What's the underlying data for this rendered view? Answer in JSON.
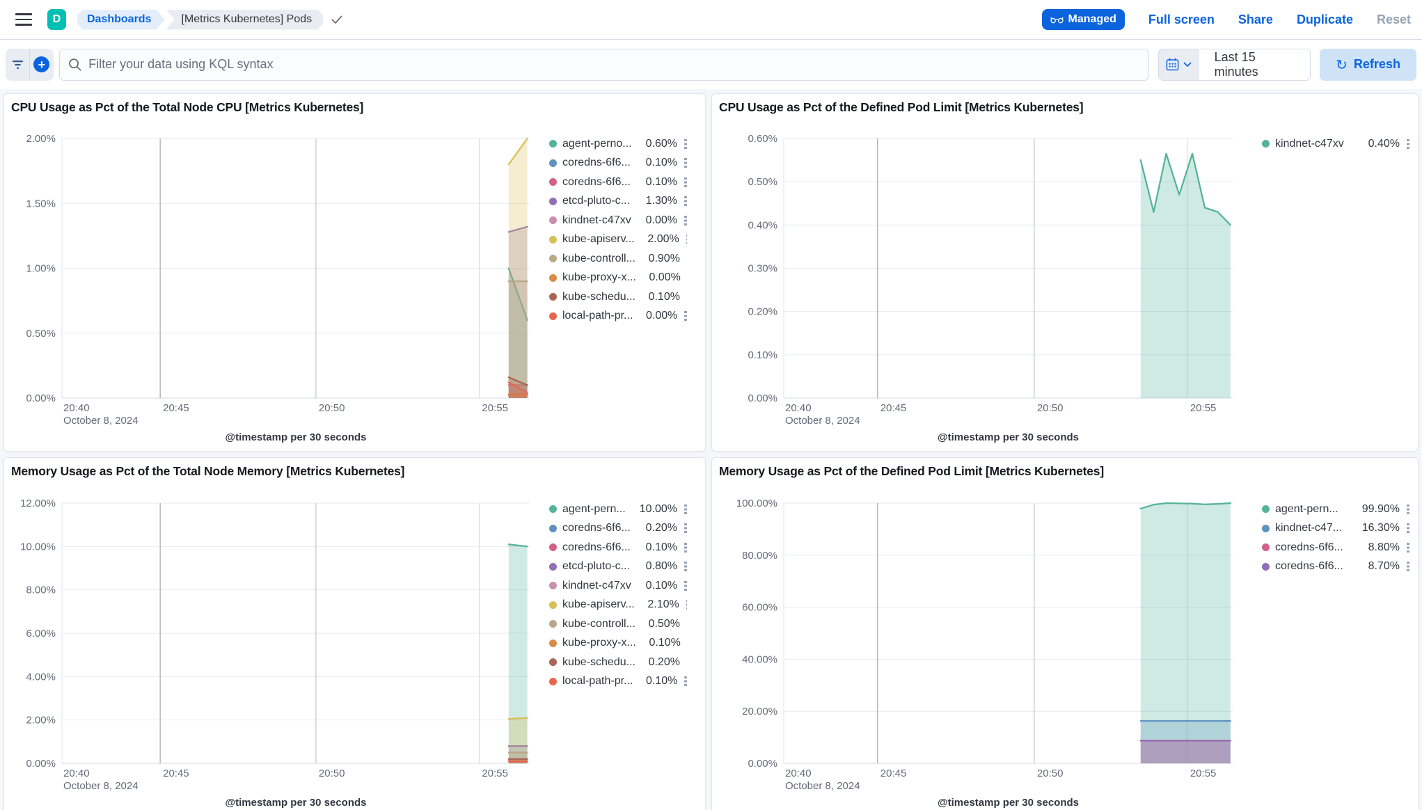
{
  "header": {
    "logo_letter": "D",
    "breadcrumbs": [
      {
        "label": "Dashboards"
      },
      {
        "label": "[Metrics Kubernetes] Pods"
      }
    ],
    "managed_badge_label": "Managed",
    "actions": {
      "full_screen": "Full screen",
      "share": "Share",
      "duplicate": "Duplicate",
      "reset": "Reset"
    }
  },
  "toolbar": {
    "search_placeholder": "Filter your data using KQL syntax",
    "time_range_label": "Last 15 minutes",
    "refresh_label": "Refresh"
  },
  "colors": {
    "accent_blue": "#0b64dd",
    "logo_teal": "#00bfb3",
    "palette": [
      "#54B399",
      "#6092C0",
      "#D36086",
      "#9170B8",
      "#CA8EAE",
      "#D6BF57",
      "#B9A888",
      "#DA8B45",
      "#AA6556",
      "#E7664C"
    ],
    "grid_dark": "#95969e",
    "grid_med": "#b9bcc4",
    "grid_light": "#d3d6dc",
    "axis_text": "#646a77",
    "legend_text": "#343741"
  },
  "chart_data": [
    {
      "type": "area",
      "title": "CPU Usage as Pct of the Total Node CPU [Metrics Kubernetes]",
      "x_axis_title": "@timestamp per 30 seconds",
      "ylim": [
        0,
        2
      ],
      "grid": true,
      "legend_position": "right",
      "y_ticks": [
        {
          "v": 2,
          "label": "2.00%"
        },
        {
          "v": 1.5,
          "label": "1.50%"
        },
        {
          "v": 1,
          "label": "1.00%"
        },
        {
          "v": 0.5,
          "label": "0.50%"
        },
        {
          "v": 0,
          "label": "0.00%"
        }
      ],
      "x_ticks": [
        {
          "f": 0,
          "label": "20:40",
          "sub": "October 8, 2024"
        },
        {
          "f": 0.21,
          "label": "20:45",
          "grid": "dark"
        },
        {
          "f": 0.543,
          "label": "20:50",
          "grid": "med"
        },
        {
          "f": 0.892,
          "label": "20:55",
          "grid": "light"
        }
      ],
      "series": [
        {
          "name": "agent-perno...",
          "value": "0.60%",
          "color": "#54B399",
          "x": [
            0.955,
            0.995
          ],
          "y": [
            1.0,
            0.6
          ]
        },
        {
          "name": "coredns-6f6...",
          "value": "0.10%",
          "color": "#6092C0",
          "x": [
            0.955,
            0.995
          ],
          "y": [
            0.1,
            0.1
          ]
        },
        {
          "name": "coredns-6f6...",
          "value": "0.10%",
          "color": "#D36086",
          "x": [
            0.955,
            0.995
          ],
          "y": [
            0.1,
            0.1
          ]
        },
        {
          "name": "etcd-pluto-c...",
          "value": "1.30%",
          "color": "#9170B8",
          "x": [
            0.955,
            0.995
          ],
          "y": [
            1.28,
            1.32
          ]
        },
        {
          "name": "kindnet-c47xv",
          "value": "0.00%",
          "color": "#CA8EAE",
          "x": [
            0.955,
            0.995
          ],
          "y": [
            0.02,
            0.02
          ]
        },
        {
          "name": "kube-apiserv...",
          "value": "2.00%",
          "color": "#D6BF57",
          "x": [
            0.955,
            0.995
          ],
          "y": [
            1.8,
            2.0
          ]
        },
        {
          "name": "kube-controll...",
          "value": "0.90%",
          "color": "#B9A888",
          "x": [
            0.955,
            0.995
          ],
          "y": [
            0.9,
            0.9
          ]
        },
        {
          "name": "kube-proxy-x...",
          "value": "0.00%",
          "color": "#DA8B45",
          "x": [
            0.955,
            0.995
          ],
          "y": [
            0.03,
            0.03
          ]
        },
        {
          "name": "kube-schedu...",
          "value": "0.10%",
          "color": "#AA6556",
          "x": [
            0.955,
            0.995
          ],
          "y": [
            0.16,
            0.1
          ]
        },
        {
          "name": "local-path-pr...",
          "value": "0.00%",
          "color": "#E7664C",
          "x": [
            0.955,
            0.995
          ],
          "y": [
            0.12,
            0.04
          ]
        }
      ]
    },
    {
      "type": "area",
      "title": "CPU Usage as Pct of the Defined Pod Limit [Metrics Kubernetes]",
      "x_axis_title": "@timestamp per 30 seconds",
      "ylim": [
        0,
        0.6
      ],
      "grid": true,
      "legend_position": "right",
      "y_ticks": [
        {
          "v": 0.6,
          "label": "0.60%"
        },
        {
          "v": 0.5,
          "label": "0.50%"
        },
        {
          "v": 0.4,
          "label": "0.40%"
        },
        {
          "v": 0.3,
          "label": "0.30%"
        },
        {
          "v": 0.2,
          "label": "0.20%"
        },
        {
          "v": 0.1,
          "label": "0.10%"
        },
        {
          "v": 0,
          "label": "0.00%"
        }
      ],
      "x_ticks": [
        {
          "f": 0,
          "label": "20:40",
          "sub": "October 8, 2024"
        },
        {
          "f": 0.209,
          "label": "20:45",
          "grid": "dark"
        },
        {
          "f": 0.558,
          "label": "20:50",
          "grid": "med"
        },
        {
          "f": 0.899,
          "label": "20:55",
          "grid": "light"
        }
      ],
      "series": [
        {
          "name": "kindnet-c47xv",
          "value": "0.40%",
          "color": "#54B399",
          "x": [
            0.795,
            0.824,
            0.852,
            0.881,
            0.91,
            0.938,
            0.967,
            0.995
          ],
          "y": [
            0.55,
            0.43,
            0.565,
            0.47,
            0.565,
            0.44,
            0.43,
            0.4
          ]
        }
      ]
    },
    {
      "type": "area",
      "title": "Memory Usage as Pct of the Total Node Memory [Metrics Kubernetes]",
      "x_axis_title": "@timestamp per 30 seconds",
      "ylim": [
        0,
        12
      ],
      "grid": true,
      "legend_position": "right",
      "y_ticks": [
        {
          "v": 12,
          "label": "12.00%"
        },
        {
          "v": 10,
          "label": "10.00%"
        },
        {
          "v": 8,
          "label": "8.00%"
        },
        {
          "v": 6,
          "label": "6.00%"
        },
        {
          "v": 4,
          "label": "4.00%"
        },
        {
          "v": 2,
          "label": "2.00%"
        },
        {
          "v": 0,
          "label": "0.00%"
        }
      ],
      "x_ticks": [
        {
          "f": 0,
          "label": "20:40",
          "sub": "October 8, 2024"
        },
        {
          "f": 0.21,
          "label": "20:45",
          "grid": "dark"
        },
        {
          "f": 0.543,
          "label": "20:50",
          "grid": "med"
        },
        {
          "f": 0.892,
          "label": "20:55",
          "grid": "light"
        }
      ],
      "series": [
        {
          "name": "agent-pern...",
          "value": "10.00%",
          "color": "#54B399",
          "x": [
            0.955,
            0.995
          ],
          "y": [
            10.1,
            10.0
          ]
        },
        {
          "name": "coredns-6f6...",
          "value": "0.20%",
          "color": "#6092C0",
          "x": [
            0.955,
            0.995
          ],
          "y": [
            0.2,
            0.2
          ]
        },
        {
          "name": "coredns-6f6...",
          "value": "0.10%",
          "color": "#D36086",
          "x": [
            0.955,
            0.995
          ],
          "y": [
            0.1,
            0.1
          ]
        },
        {
          "name": "etcd-pluto-c...",
          "value": "0.80%",
          "color": "#9170B8",
          "x": [
            0.955,
            0.995
          ],
          "y": [
            0.8,
            0.8
          ]
        },
        {
          "name": "kindnet-c47xv",
          "value": "0.10%",
          "color": "#CA8EAE",
          "x": [
            0.955,
            0.995
          ],
          "y": [
            0.1,
            0.1
          ]
        },
        {
          "name": "kube-apiserv...",
          "value": "2.10%",
          "color": "#D6BF57",
          "x": [
            0.955,
            0.995
          ],
          "y": [
            2.05,
            2.1
          ]
        },
        {
          "name": "kube-controll...",
          "value": "0.50%",
          "color": "#B9A888",
          "x": [
            0.955,
            0.995
          ],
          "y": [
            0.5,
            0.5
          ]
        },
        {
          "name": "kube-proxy-x...",
          "value": "0.10%",
          "color": "#DA8B45",
          "x": [
            0.955,
            0.995
          ],
          "y": [
            0.1,
            0.1
          ]
        },
        {
          "name": "kube-schedu...",
          "value": "0.20%",
          "color": "#AA6556",
          "x": [
            0.955,
            0.995
          ],
          "y": [
            0.2,
            0.2
          ]
        },
        {
          "name": "local-path-pr...",
          "value": "0.10%",
          "color": "#E7664C",
          "x": [
            0.955,
            0.995
          ],
          "y": [
            0.1,
            0.1
          ]
        }
      ]
    },
    {
      "type": "area",
      "title": "Memory Usage as Pct of the Defined Pod Limit [Metrics Kubernetes]",
      "x_axis_title": "@timestamp per 30 seconds",
      "ylim": [
        0,
        100
      ],
      "grid": true,
      "legend_position": "right",
      "y_ticks": [
        {
          "v": 100,
          "label": "100.00%"
        },
        {
          "v": 80,
          "label": "80.00%"
        },
        {
          "v": 60,
          "label": "60.00%"
        },
        {
          "v": 40,
          "label": "40.00%"
        },
        {
          "v": 20,
          "label": "20.00%"
        },
        {
          "v": 0,
          "label": "0.00%"
        }
      ],
      "x_ticks": [
        {
          "f": 0,
          "label": "20:40",
          "sub": "October 8, 2024"
        },
        {
          "f": 0.209,
          "label": "20:45",
          "grid": "dark"
        },
        {
          "f": 0.558,
          "label": "20:50",
          "grid": "med"
        },
        {
          "f": 0.899,
          "label": "20:55",
          "grid": "light"
        }
      ],
      "series": [
        {
          "name": "agent-pern...",
          "value": "99.90%",
          "color": "#54B399",
          "x": [
            0.795,
            0.824,
            0.852,
            0.881,
            0.91,
            0.938,
            0.967,
            0.995
          ],
          "y": [
            97.9,
            99.4,
            100,
            99.9,
            99.8,
            99.5,
            99.7,
            100
          ]
        },
        {
          "name": "kindnet-c47...",
          "value": "16.30%",
          "color": "#6092C0",
          "x": [
            0.795,
            0.824,
            0.852,
            0.881,
            0.91,
            0.938,
            0.967,
            0.995
          ],
          "y": [
            16.3,
            16.3,
            16.3,
            16.3,
            16.3,
            16.3,
            16.3,
            16.3
          ]
        },
        {
          "name": "coredns-6f6...",
          "value": "8.80%",
          "color": "#D36086",
          "x": [
            0.795,
            0.824,
            0.852,
            0.881,
            0.91,
            0.938,
            0.967,
            0.995
          ],
          "y": [
            8.8,
            8.8,
            8.8,
            8.8,
            8.8,
            8.8,
            8.8,
            8.8
          ]
        },
        {
          "name": "coredns-6f6...",
          "value": "8.70%",
          "color": "#9170B8",
          "x": [
            0.795,
            0.824,
            0.852,
            0.881,
            0.91,
            0.938,
            0.967,
            0.995
          ],
          "y": [
            8.7,
            8.7,
            8.7,
            8.7,
            8.7,
            8.7,
            8.7,
            8.7
          ]
        }
      ]
    }
  ]
}
